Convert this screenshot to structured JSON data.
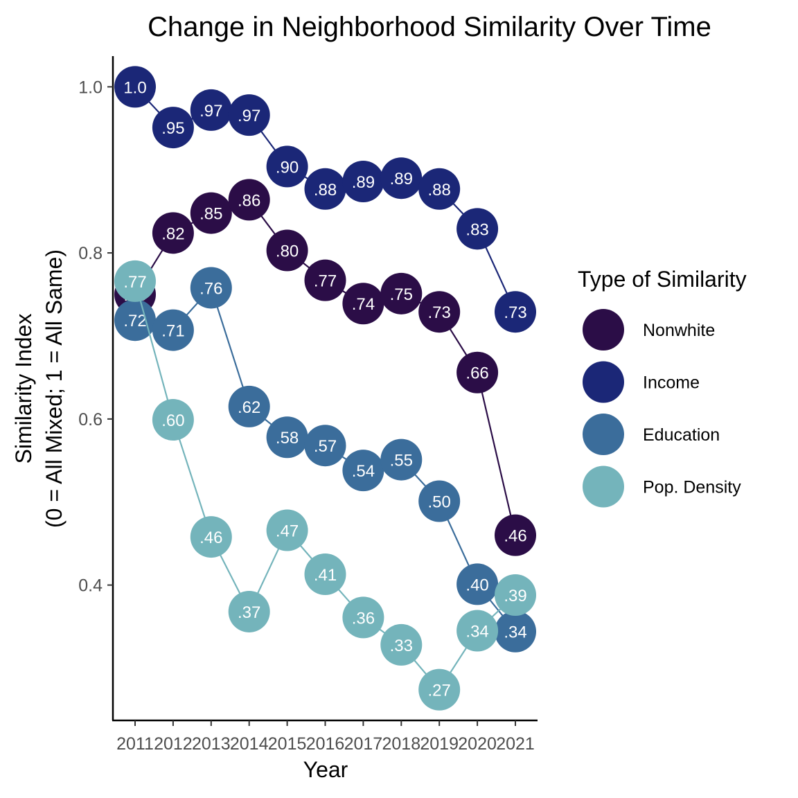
{
  "chart_data": {
    "type": "line",
    "title": "Change in Neighborhood Similarity Over Time",
    "xlabel": "Year",
    "ylabel_lines": [
      "Similarity Index",
      "(0 = All Mixed; 1 = All Same)"
    ],
    "x": [
      2011,
      2012,
      2013,
      2014,
      2015,
      2016,
      2017,
      2018,
      2019,
      2020,
      2021
    ],
    "x_tick_labels": [
      "2011",
      "2012",
      "2013",
      "2014",
      "2015",
      "2016",
      "2017",
      "2018",
      "2019",
      "2020",
      "2021"
    ],
    "y_ticks": [
      0.4,
      0.6,
      0.8,
      1.0
    ],
    "y_tick_labels": [
      "0.4",
      "0.6",
      "0.8",
      "1.0"
    ],
    "ylim": [
      0.237,
      1.037
    ],
    "grid": false,
    "legend_title": "Type of Similarity",
    "legend_position": "right",
    "series": [
      {
        "name": "Nonwhite",
        "color": "#2b0d47",
        "values": [
          0.75,
          0.824,
          0.848,
          0.864,
          0.803,
          0.767,
          0.739,
          0.751,
          0.729,
          0.656,
          0.46
        ],
        "labels": [
          ".75",
          ".82",
          ".85",
          ".86",
          ".80",
          ".77",
          ".74",
          ".75",
          ".73",
          ".66",
          ".46"
        ]
      },
      {
        "name": "Income",
        "color": "#1b2777",
        "values": [
          1.0,
          0.951,
          0.972,
          0.966,
          0.904,
          0.877,
          0.886,
          0.89,
          0.877,
          0.829,
          0.729
        ],
        "labels": [
          "1.0",
          ".95",
          ".97",
          ".97",
          ".90",
          ".88",
          ".89",
          ".89",
          ".88",
          ".83",
          ".73"
        ]
      },
      {
        "name": "Education",
        "color": "#3b6d9b",
        "values": [
          0.719,
          0.707,
          0.758,
          0.615,
          0.578,
          0.568,
          0.538,
          0.551,
          0.501,
          0.401,
          0.344
        ],
        "labels": [
          ".72",
          ".71",
          ".76",
          ".62",
          ".58",
          ".57",
          ".54",
          ".55",
          ".50",
          ".40",
          ".34"
        ]
      },
      {
        "name": "Pop. Density",
        "color": "#74b4bb",
        "values": [
          0.766,
          0.599,
          0.458,
          0.368,
          0.466,
          0.413,
          0.361,
          0.328,
          0.274,
          0.345,
          0.388
        ],
        "labels": [
          ".77",
          ".60",
          ".46",
          ".37",
          ".47",
          ".41",
          ".36",
          ".33",
          ".27",
          ".34",
          ".39"
        ]
      }
    ]
  }
}
